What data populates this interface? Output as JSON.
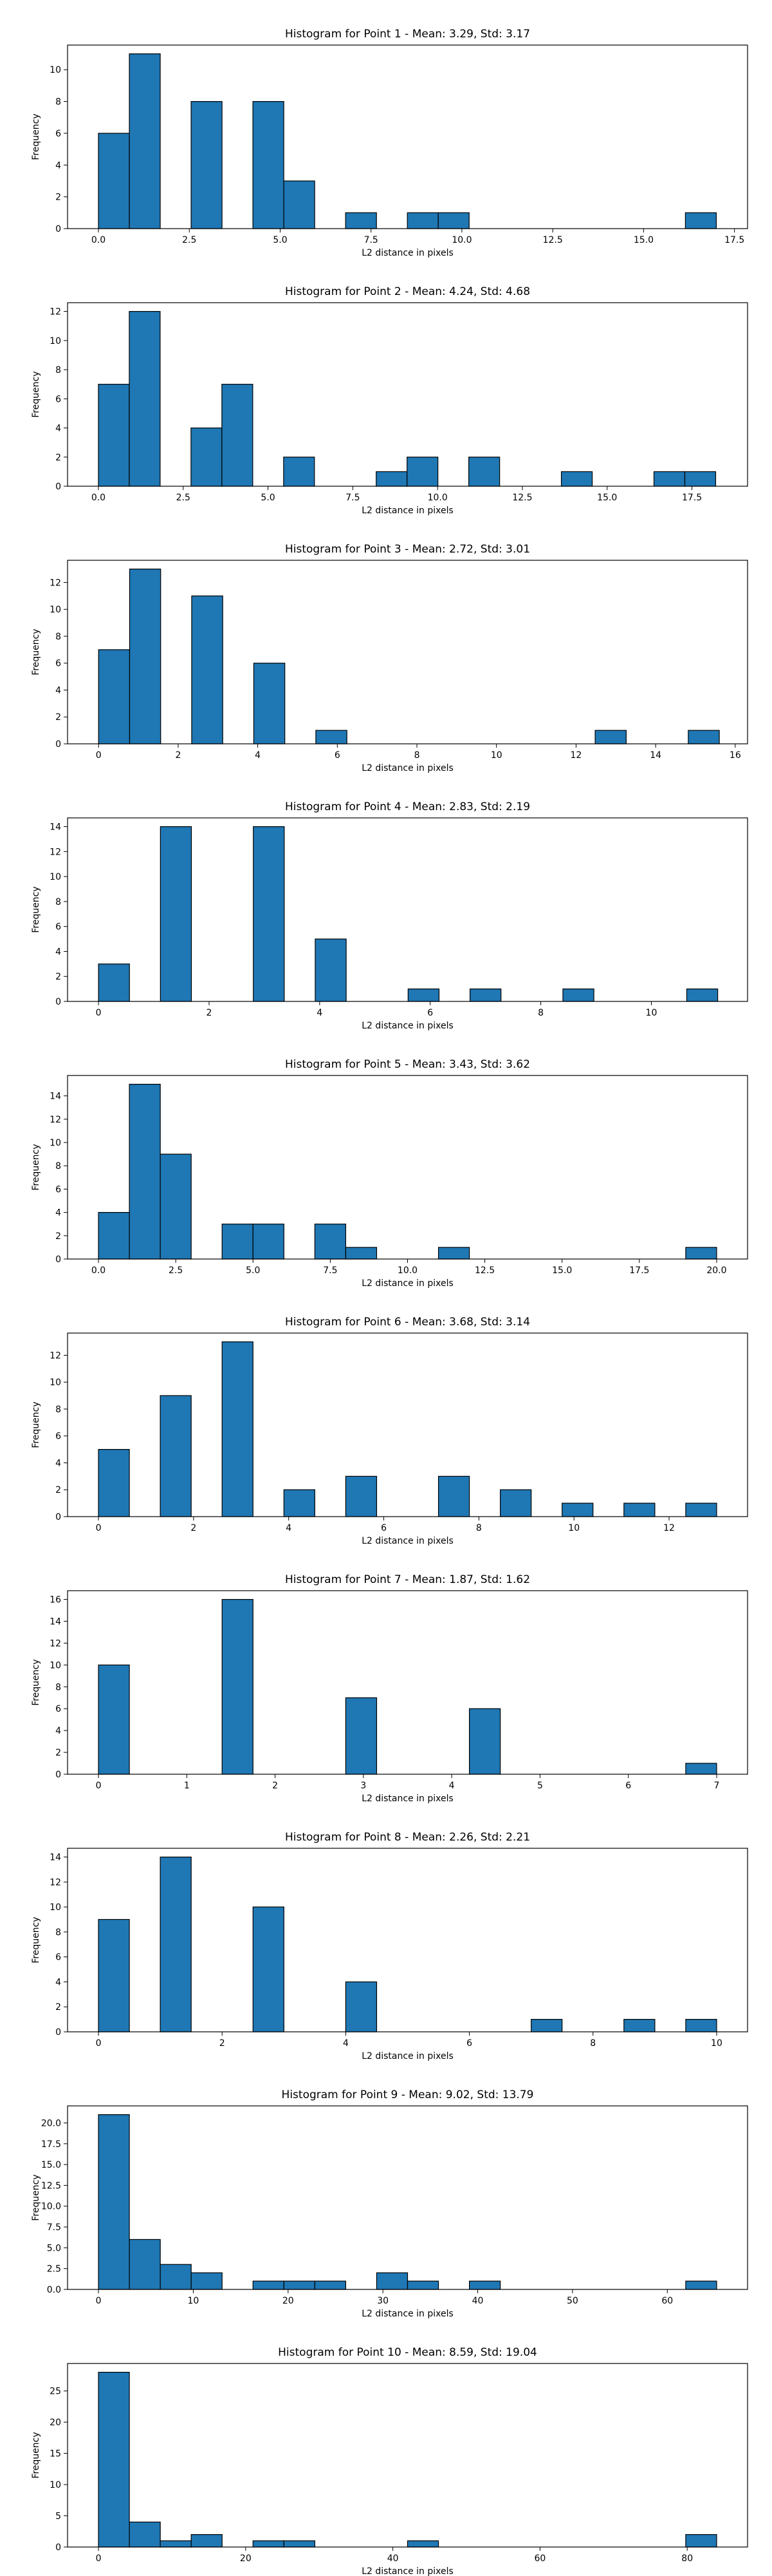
{
  "chart_data": [
    {
      "type": "bar",
      "title": "Histogram for Point 1 - Mean: 3.29, Std: 3.17",
      "xlabel": "L2 distance in pixels",
      "ylabel": "Frequency",
      "xlim": [
        -0.85,
        17.86
      ],
      "ylim": [
        0,
        11.55
      ],
      "xticks": [
        0.0,
        2.5,
        5.0,
        7.5,
        10.0,
        12.5,
        15.0,
        17.5
      ],
      "xtick_labels": [
        "0.0",
        "2.5",
        "5.0",
        "7.5",
        "10.0",
        "12.5",
        "15.0",
        "17.5"
      ],
      "yticks": [
        0,
        2,
        4,
        6,
        8,
        10
      ],
      "ytick_labels": [
        "0",
        "2",
        "4",
        "6",
        "8",
        "10"
      ],
      "bins": [
        [
          0.0,
          0.85,
          6
        ],
        [
          0.85,
          1.7,
          11
        ],
        [
          2.55,
          3.4,
          8
        ],
        [
          4.25,
          5.1,
          8
        ],
        [
          5.1,
          5.95,
          3
        ],
        [
          6.8,
          7.65,
          1
        ],
        [
          8.5,
          9.35,
          1
        ],
        [
          9.35,
          10.2,
          1
        ],
        [
          16.15,
          17.0,
          1
        ]
      ],
      "bar_color": "#1f77b4"
    },
    {
      "type": "bar",
      "title": "Histogram for Point 2 - Mean: 4.24, Std: 4.68",
      "xlabel": "L2 distance in pixels",
      "ylabel": "Frequency",
      "xlim": [
        -0.91,
        19.14
      ],
      "ylim": [
        0,
        12.6
      ],
      "xticks": [
        0.0,
        2.5,
        5.0,
        7.5,
        10.0,
        12.5,
        15.0,
        17.5
      ],
      "xtick_labels": [
        "0.0",
        "2.5",
        "5.0",
        "7.5",
        "10.0",
        "12.5",
        "15.0",
        "17.5"
      ],
      "yticks": [
        0,
        2,
        4,
        6,
        8,
        10,
        12
      ],
      "ytick_labels": [
        "0",
        "2",
        "4",
        "6",
        "8",
        "10",
        "12"
      ],
      "bins": [
        [
          0.0,
          0.91,
          7
        ],
        [
          0.91,
          1.82,
          12
        ],
        [
          2.73,
          3.64,
          4
        ],
        [
          3.64,
          4.55,
          7
        ],
        [
          5.46,
          6.37,
          2
        ],
        [
          8.19,
          9.1,
          1
        ],
        [
          9.1,
          10.01,
          2
        ],
        [
          10.92,
          11.83,
          2
        ],
        [
          13.65,
          14.56,
          1
        ],
        [
          16.38,
          17.29,
          1
        ],
        [
          17.29,
          18.2,
          1
        ]
      ],
      "bar_color": "#1f77b4"
    },
    {
      "type": "bar",
      "title": "Histogram for Point 3 - Mean: 2.72, Std: 3.01",
      "xlabel": "L2 distance in pixels",
      "ylabel": "Frequency",
      "xlim": [
        -0.78,
        16.31
      ],
      "ylim": [
        0,
        13.65
      ],
      "xticks": [
        0,
        2,
        4,
        6,
        8,
        10,
        12,
        14,
        16
      ],
      "xtick_labels": [
        "0",
        "2",
        "4",
        "6",
        "8",
        "10",
        "12",
        "14",
        "16"
      ],
      "yticks": [
        0,
        2,
        4,
        6,
        8,
        10,
        12
      ],
      "ytick_labels": [
        "0",
        "2",
        "4",
        "6",
        "8",
        "10",
        "12"
      ],
      "bins": [
        [
          0.0,
          0.78,
          7
        ],
        [
          0.78,
          1.56,
          13
        ],
        [
          2.34,
          3.12,
          11
        ],
        [
          3.9,
          4.68,
          6
        ],
        [
          5.46,
          6.24,
          1
        ],
        [
          12.48,
          13.26,
          1
        ],
        [
          14.82,
          15.6,
          1
        ]
      ],
      "bar_color": "#1f77b4"
    },
    {
      "type": "bar",
      "title": "Histogram for Point 4 - Mean: 2.83, Std: 2.19",
      "xlabel": "L2 distance in pixels",
      "ylabel": "Frequency",
      "xlim": [
        -0.56,
        11.74
      ],
      "ylim": [
        0,
        14.7
      ],
      "xticks": [
        0,
        2,
        4,
        6,
        8,
        10
      ],
      "xtick_labels": [
        "0",
        "2",
        "4",
        "6",
        "8",
        "10"
      ],
      "yticks": [
        0,
        2,
        4,
        6,
        8,
        10,
        12,
        14
      ],
      "ytick_labels": [
        "0",
        "2",
        "4",
        "6",
        "8",
        "10",
        "12",
        "14"
      ],
      "bins": [
        [
          0.0,
          0.56,
          3
        ],
        [
          1.12,
          1.68,
          14
        ],
        [
          2.8,
          3.36,
          14
        ],
        [
          3.92,
          4.48,
          5
        ],
        [
          5.6,
          6.16,
          1
        ],
        [
          6.72,
          7.28,
          1
        ],
        [
          8.4,
          8.96,
          1
        ],
        [
          10.64,
          11.2,
          1
        ]
      ],
      "bar_color": "#1f77b4"
    },
    {
      "type": "bar",
      "title": "Histogram for Point 5 - Mean: 3.43, Std: 3.62",
      "xlabel": "L2 distance in pixels",
      "ylabel": "Frequency",
      "xlim": [
        -1.0,
        21.0
      ],
      "ylim": [
        0,
        15.75
      ],
      "xticks": [
        0.0,
        2.5,
        5.0,
        7.5,
        10.0,
        12.5,
        15.0,
        17.5,
        20.0
      ],
      "xtick_labels": [
        "0.0",
        "2.5",
        "5.0",
        "7.5",
        "10.0",
        "12.5",
        "15.0",
        "17.5",
        "20.0"
      ],
      "yticks": [
        0,
        2,
        4,
        6,
        8,
        10,
        12,
        14
      ],
      "ytick_labels": [
        "0",
        "2",
        "4",
        "6",
        "8",
        "10",
        "12",
        "14"
      ],
      "bins": [
        [
          0.0,
          1.0,
          4
        ],
        [
          1.0,
          2.0,
          15
        ],
        [
          2.0,
          3.0,
          9
        ],
        [
          4.0,
          5.0,
          3
        ],
        [
          5.0,
          6.0,
          3
        ],
        [
          7.0,
          8.0,
          3
        ],
        [
          8.0,
          9.0,
          1
        ],
        [
          11.0,
          12.0,
          1
        ],
        [
          19.0,
          20.0,
          1
        ]
      ],
      "bar_color": "#1f77b4"
    },
    {
      "type": "bar",
      "title": "Histogram for Point 6 - Mean: 3.68, Std: 3.14",
      "xlabel": "L2 distance in pixels",
      "ylabel": "Frequency",
      "xlim": [
        -0.65,
        13.65
      ],
      "ylim": [
        0,
        13.65
      ],
      "xticks": [
        0,
        2,
        4,
        6,
        8,
        10,
        12
      ],
      "xtick_labels": [
        "0",
        "2",
        "4",
        "6",
        "8",
        "10",
        "12"
      ],
      "yticks": [
        0,
        2,
        4,
        6,
        8,
        10,
        12
      ],
      "ytick_labels": [
        "0",
        "2",
        "4",
        "6",
        "8",
        "10",
        "12"
      ],
      "bins": [
        [
          0.0,
          0.65,
          5
        ],
        [
          1.3,
          1.95,
          9
        ],
        [
          2.6,
          3.25,
          13
        ],
        [
          3.9,
          4.55,
          2
        ],
        [
          5.2,
          5.85,
          3
        ],
        [
          7.15,
          7.8,
          3
        ],
        [
          8.45,
          9.1,
          2
        ],
        [
          9.75,
          10.4,
          1
        ],
        [
          11.05,
          11.7,
          1
        ],
        [
          12.35,
          13.0,
          1
        ]
      ],
      "bar_color": "#1f77b4"
    },
    {
      "type": "bar",
      "title": "Histogram for Point 7 - Mean: 1.87, Std: 1.62",
      "xlabel": "L2 distance in pixels",
      "ylabel": "Frequency",
      "xlim": [
        -0.35,
        7.35
      ],
      "ylim": [
        0,
        16.8
      ],
      "xticks": [
        0,
        1,
        2,
        3,
        4,
        5,
        6,
        7
      ],
      "xtick_labels": [
        "0",
        "1",
        "2",
        "3",
        "4",
        "5",
        "6",
        "7"
      ],
      "yticks": [
        0,
        2,
        4,
        6,
        8,
        10,
        12,
        14,
        16
      ],
      "ytick_labels": [
        "0",
        "2",
        "4",
        "6",
        "8",
        "10",
        "12",
        "14",
        "16"
      ],
      "bins": [
        [
          0.0,
          0.35,
          10
        ],
        [
          1.4,
          1.75,
          16
        ],
        [
          2.8,
          3.15,
          7
        ],
        [
          4.2,
          4.55,
          6
        ],
        [
          6.65,
          7.0,
          1
        ]
      ],
      "bar_color": "#1f77b4"
    },
    {
      "type": "bar",
      "title": "Histogram for Point 8 - Mean: 2.26, Std: 2.21",
      "xlabel": "L2 distance in pixels",
      "ylabel": "Frequency",
      "xlim": [
        -0.5,
        10.5
      ],
      "ylim": [
        0,
        14.7
      ],
      "xticks": [
        0,
        2,
        4,
        6,
        8,
        10
      ],
      "xtick_labels": [
        "0",
        "2",
        "4",
        "6",
        "8",
        "10"
      ],
      "yticks": [
        0,
        2,
        4,
        6,
        8,
        10,
        12,
        14
      ],
      "ytick_labels": [
        "0",
        "2",
        "4",
        "6",
        "8",
        "10",
        "12",
        "14"
      ],
      "bins": [
        [
          0.0,
          0.5,
          9
        ],
        [
          1.0,
          1.5,
          14
        ],
        [
          2.5,
          3.0,
          10
        ],
        [
          4.0,
          4.5,
          4
        ],
        [
          7.0,
          7.5,
          1
        ],
        [
          8.5,
          9.0,
          1
        ],
        [
          9.5,
          10.0,
          1
        ]
      ],
      "bar_color": "#1f77b4"
    },
    {
      "type": "bar",
      "title": "Histogram for Point 9 - Mean: 9.02, Std: 13.79",
      "xlabel": "L2 distance in pixels",
      "ylabel": "Frequency",
      "xlim": [
        -3.26,
        68.46
      ],
      "ylim": [
        0,
        22.05
      ],
      "xticks": [
        0,
        10,
        20,
        30,
        40,
        50,
        60
      ],
      "xtick_labels": [
        "0",
        "10",
        "20",
        "30",
        "40",
        "50",
        "60"
      ],
      "yticks": [
        0.0,
        2.5,
        5.0,
        7.5,
        10.0,
        12.5,
        15.0,
        17.5,
        20.0
      ],
      "ytick_labels": [
        "0.0",
        "2.5",
        "5.0",
        "7.5",
        "10.0",
        "12.5",
        "15.0",
        "17.5",
        "20.0"
      ],
      "bins": [
        [
          0.0,
          3.26,
          21
        ],
        [
          3.26,
          6.52,
          6
        ],
        [
          6.52,
          9.78,
          3
        ],
        [
          9.78,
          13.04,
          2
        ],
        [
          16.3,
          19.56,
          1
        ],
        [
          19.56,
          22.82,
          1
        ],
        [
          22.82,
          26.08,
          1
        ],
        [
          29.34,
          32.6,
          2
        ],
        [
          32.6,
          35.86,
          1
        ],
        [
          39.12,
          42.38,
          1
        ],
        [
          61.94,
          65.2,
          1
        ]
      ],
      "bar_color": "#1f77b4"
    },
    {
      "type": "bar",
      "title": "Histogram for Point 10 - Mean: 8.59, Std: 19.04",
      "xlabel": "L2 distance in pixels",
      "ylabel": "Frequency",
      "xlim": [
        -4.2,
        88.2
      ],
      "ylim": [
        0,
        29.4
      ],
      "xticks": [
        0,
        20,
        40,
        60,
        80
      ],
      "xtick_labels": [
        "0",
        "20",
        "40",
        "60",
        "80"
      ],
      "yticks": [
        0,
        5,
        10,
        15,
        20,
        25
      ],
      "ytick_labels": [
        "0",
        "5",
        "10",
        "15",
        "20",
        "25"
      ],
      "bins": [
        [
          0.0,
          4.2,
          28
        ],
        [
          4.2,
          8.4,
          4
        ],
        [
          8.4,
          12.6,
          1
        ],
        [
          12.6,
          16.8,
          2
        ],
        [
          21.0,
          25.2,
          1
        ],
        [
          25.2,
          29.4,
          1
        ],
        [
          42.0,
          46.2,
          1
        ],
        [
          79.8,
          84.0,
          2
        ]
      ],
      "bar_color": "#1f77b4"
    }
  ]
}
